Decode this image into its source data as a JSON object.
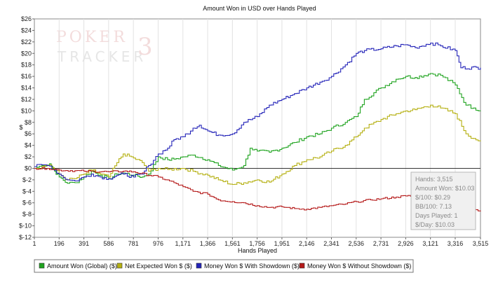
{
  "chart_data": {
    "type": "line",
    "title": "Amount Won in USD over Hands Played",
    "xlabel": "Hands Played",
    "ylabel": "$",
    "xlim": [
      1,
      3515
    ],
    "ylim": [
      -12,
      26
    ],
    "x_ticks": [
      1,
      196,
      391,
      586,
      781,
      976,
      1171,
      1366,
      1561,
      1756,
      1951,
      2146,
      2341,
      2536,
      2731,
      2926,
      3121,
      3316,
      3515
    ],
    "x_tick_labels": [
      "1",
      "196",
      "391",
      "586",
      "781",
      "976",
      "1,171",
      "1,366",
      "1,561",
      "1,756",
      "1,951",
      "2,146",
      "2,341",
      "2,536",
      "2,731",
      "2,926",
      "3,121",
      "3,316",
      "3,515"
    ],
    "y_ticks": [
      -12,
      -10,
      -8,
      -6,
      -4,
      -2,
      0,
      2,
      4,
      6,
      8,
      10,
      12,
      14,
      16,
      18,
      20,
      22,
      24,
      26
    ],
    "y_tick_labels": [
      "$-12",
      "$-10",
      "$-8",
      "$-6",
      "$-4",
      "$-2",
      "$0",
      "$2",
      "$4",
      "$6",
      "$8",
      "$10",
      "$12",
      "$14",
      "$16",
      "$18",
      "$20",
      "$22",
      "$24",
      "$26"
    ],
    "grid": "vertical",
    "legend_position": "bottom",
    "watermark": "POKERTRACKER 3",
    "series": [
      {
        "name": "Amount Won (Global) ($)",
        "color": "#1fa31f",
        "points": [
          [
            1,
            0
          ],
          [
            60,
            0.5
          ],
          [
            120,
            0.8
          ],
          [
            160,
            -0.5
          ],
          [
            196,
            -1.5
          ],
          [
            260,
            -2.6
          ],
          [
            320,
            -2.5
          ],
          [
            391,
            -1.5
          ],
          [
            450,
            -0.5
          ],
          [
            520,
            -1.2
          ],
          [
            586,
            -1.8
          ],
          [
            650,
            -1
          ],
          [
            700,
            -0.8
          ],
          [
            781,
            -1.2
          ],
          [
            850,
            -1.5
          ],
          [
            900,
            -1
          ],
          [
            976,
            2
          ],
          [
            1050,
            1.5
          ],
          [
            1100,
            1.6
          ],
          [
            1171,
            2
          ],
          [
            1250,
            2.3
          ],
          [
            1366,
            1.5
          ],
          [
            1450,
            0.5
          ],
          [
            1561,
            -0.3
          ],
          [
            1650,
            0.5
          ],
          [
            1700,
            3.5
          ],
          [
            1756,
            3
          ],
          [
            1851,
            2.8
          ],
          [
            1951,
            3.5
          ],
          [
            2050,
            4.5
          ],
          [
            2146,
            5.5
          ],
          [
            2250,
            6
          ],
          [
            2341,
            7
          ],
          [
            2450,
            8
          ],
          [
            2536,
            9
          ],
          [
            2600,
            12
          ],
          [
            2731,
            14
          ],
          [
            2850,
            15.5
          ],
          [
            2926,
            16
          ],
          [
            3000,
            15.8
          ],
          [
            3121,
            16.5
          ],
          [
            3200,
            16.2
          ],
          [
            3316,
            14.5
          ],
          [
            3400,
            11
          ],
          [
            3460,
            10.5
          ],
          [
            3515,
            10.03
          ]
        ]
      },
      {
        "name": "Net Expected Won $ ($)",
        "color": "#b5b012",
        "points": [
          [
            1,
            0
          ],
          [
            60,
            0.3
          ],
          [
            120,
            0.6
          ],
          [
            196,
            -1
          ],
          [
            260,
            -2
          ],
          [
            320,
            -1.8
          ],
          [
            391,
            -1
          ],
          [
            450,
            -0.3
          ],
          [
            520,
            -1
          ],
          [
            586,
            -1.5
          ],
          [
            650,
            1
          ],
          [
            700,
            2.5
          ],
          [
            781,
            1.8
          ],
          [
            850,
            1
          ],
          [
            900,
            -0.5
          ],
          [
            976,
            0
          ],
          [
            1050,
            -0.2
          ],
          [
            1171,
            0
          ],
          [
            1250,
            -0.5
          ],
          [
            1366,
            -1.2
          ],
          [
            1450,
            -2
          ],
          [
            1561,
            -2.8
          ],
          [
            1650,
            -2.5
          ],
          [
            1756,
            -2
          ],
          [
            1851,
            -2.4
          ],
          [
            1951,
            -1
          ],
          [
            2050,
            0.5
          ],
          [
            2146,
            1.5
          ],
          [
            2250,
            2
          ],
          [
            2341,
            3
          ],
          [
            2450,
            4
          ],
          [
            2536,
            5.5
          ],
          [
            2600,
            7
          ],
          [
            2731,
            8.5
          ],
          [
            2850,
            9.5
          ],
          [
            2926,
            10
          ],
          [
            3000,
            10.2
          ],
          [
            3121,
            11
          ],
          [
            3200,
            10.5
          ],
          [
            3316,
            9.5
          ],
          [
            3400,
            6
          ],
          [
            3460,
            5.2
          ],
          [
            3515,
            4.7
          ]
        ]
      },
      {
        "name": "Money Won $ With Showdown ($)",
        "color": "#2323b8",
        "points": [
          [
            1,
            0.3
          ],
          [
            60,
            0.6
          ],
          [
            120,
            0.4
          ],
          [
            196,
            -1
          ],
          [
            260,
            -2
          ],
          [
            320,
            -2.2
          ],
          [
            391,
            -1.5
          ],
          [
            450,
            -1
          ],
          [
            520,
            -1.5
          ],
          [
            586,
            -1.8
          ],
          [
            650,
            -1.2
          ],
          [
            700,
            -1
          ],
          [
            781,
            -1.5
          ],
          [
            850,
            -1
          ],
          [
            900,
            0.5
          ],
          [
            976,
            2.5
          ],
          [
            1050,
            3.5
          ],
          [
            1100,
            5
          ],
          [
            1171,
            5.5
          ],
          [
            1250,
            7
          ],
          [
            1300,
            7.5
          ],
          [
            1366,
            6.5
          ],
          [
            1450,
            5.8
          ],
          [
            1561,
            6
          ],
          [
            1650,
            8
          ],
          [
            1756,
            9
          ],
          [
            1851,
            11
          ],
          [
            1951,
            12
          ],
          [
            2050,
            13
          ],
          [
            2146,
            14
          ],
          [
            2250,
            15
          ],
          [
            2341,
            16
          ],
          [
            2450,
            18
          ],
          [
            2536,
            20
          ],
          [
            2600,
            20.5
          ],
          [
            2731,
            20.8
          ],
          [
            2850,
            21.3
          ],
          [
            2926,
            21.5
          ],
          [
            3000,
            21
          ],
          [
            3121,
            21.8
          ],
          [
            3200,
            21.3
          ],
          [
            3316,
            20.5
          ],
          [
            3360,
            17.5
          ],
          [
            3515,
            17.5
          ]
        ]
      },
      {
        "name": "Money Won $ Without Showdown ($)",
        "color": "#b51a1a",
        "points": [
          [
            1,
            0
          ],
          [
            100,
            0
          ],
          [
            196,
            -0.3
          ],
          [
            391,
            -0.5
          ],
          [
            586,
            -0.6
          ],
          [
            700,
            -0.5
          ],
          [
            781,
            -0.6
          ],
          [
            976,
            -1.5
          ],
          [
            1100,
            -2.5
          ],
          [
            1171,
            -3.2
          ],
          [
            1250,
            -4
          ],
          [
            1366,
            -4.5
          ],
          [
            1450,
            -5.5
          ],
          [
            1561,
            -5.8
          ],
          [
            1650,
            -6
          ],
          [
            1756,
            -6.5
          ],
          [
            1851,
            -6.8
          ],
          [
            1951,
            -6.7
          ],
          [
            2050,
            -7
          ],
          [
            2146,
            -7.1
          ],
          [
            2250,
            -6.8
          ],
          [
            2341,
            -6.5
          ],
          [
            2450,
            -6.2
          ],
          [
            2536,
            -5.8
          ],
          [
            2650,
            -5.5
          ],
          [
            2731,
            -5.3
          ],
          [
            2850,
            -5
          ],
          [
            2926,
            -4.8
          ],
          [
            3000,
            -4.9
          ],
          [
            3121,
            -5
          ],
          [
            3250,
            -5.2
          ],
          [
            3316,
            -6
          ],
          [
            3400,
            -6.5
          ],
          [
            3515,
            -7.5
          ]
        ]
      }
    ],
    "tooltip": {
      "lines": [
        "Hands: 3,515",
        "Amount Won: $10.03",
        "$/100: $0.29",
        "BB/100: 7.13",
        "Days Played: 1",
        "$/Day: $10.03"
      ]
    }
  }
}
